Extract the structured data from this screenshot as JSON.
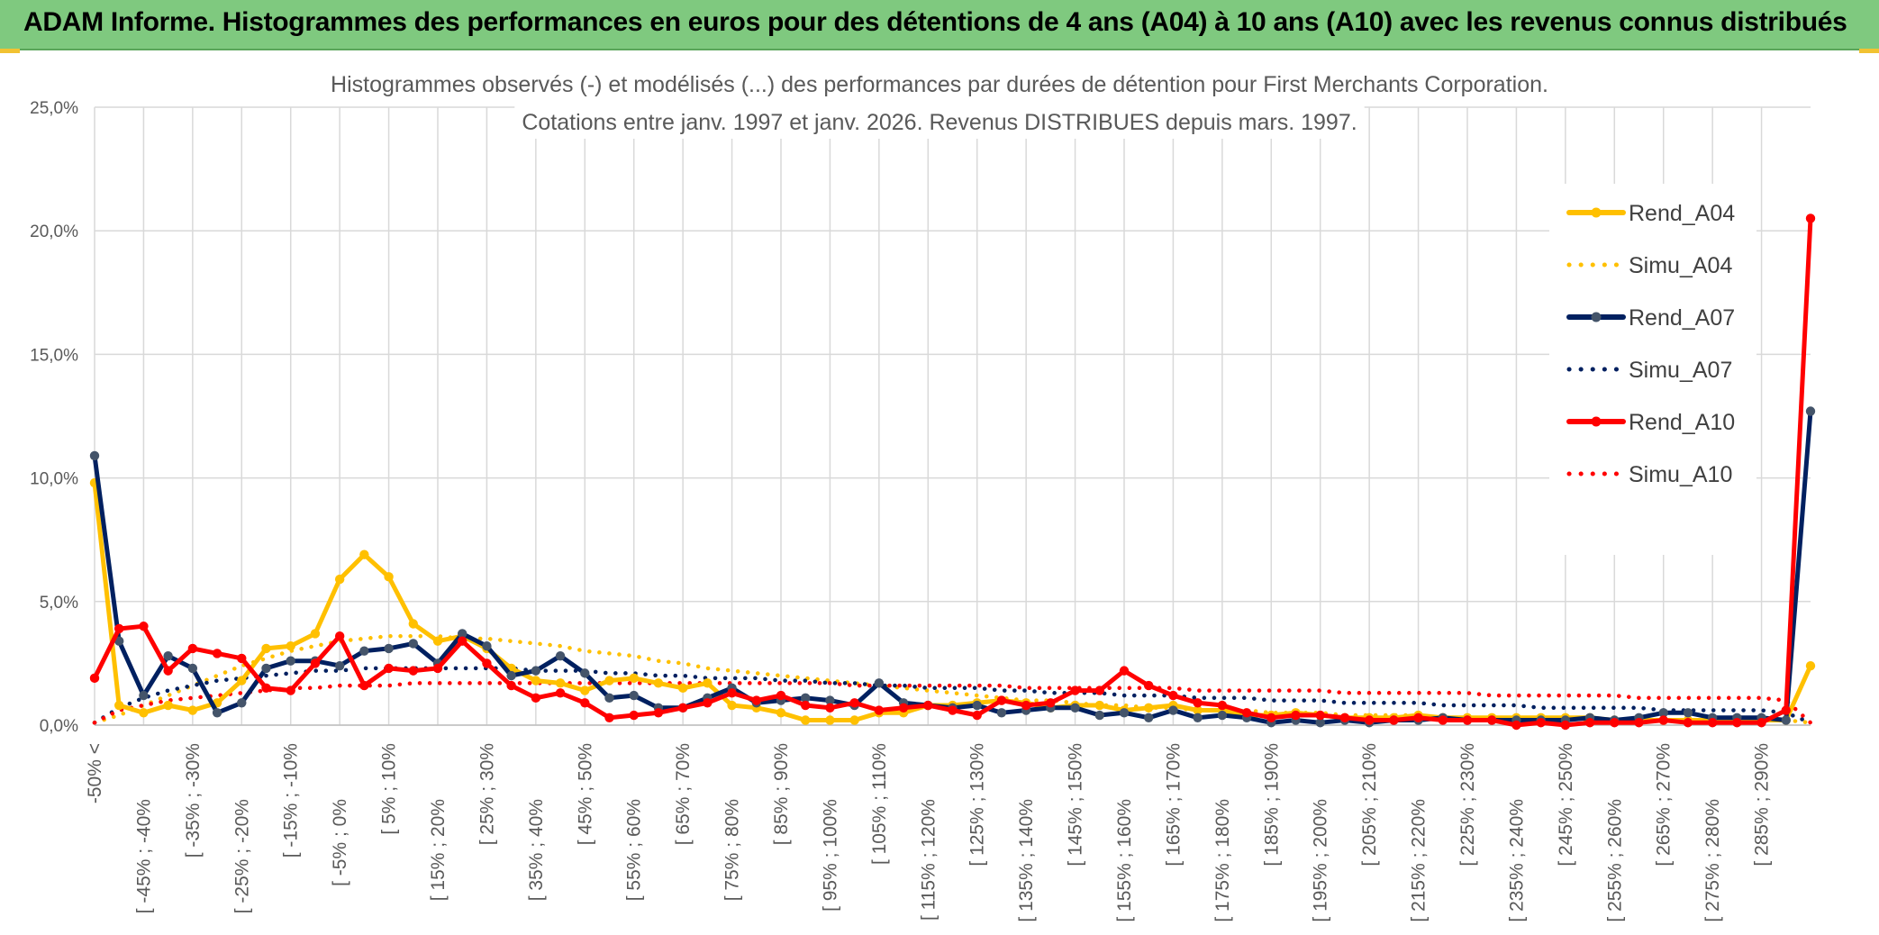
{
  "header": {
    "title": "ADAM Informe. Histogrammes des performances en euros pour des détentions de 4 ans (A04) à 10 ans (A10) avec les revenus connus distribués"
  },
  "colors": {
    "banner": "#7fc97f",
    "a04": "#ffc000",
    "a07": "#002060",
    "a10": "#ff0000",
    "grid": "#d9d9d9",
    "axis_text": "#595959"
  },
  "chart_data": {
    "type": "line",
    "title": "Histogrammes observés (-) et modélisés (...) des performances par durées de détention pour First Merchants Corporation.",
    "subtitle": "Cotations entre janv. 1997 et janv. 2026. Revenus DISTRIBUES depuis mars. 1997.",
    "xlabel": "",
    "ylabel": "",
    "ylim": [
      0,
      25
    ],
    "yticks": [
      "0,0%",
      "5,0%",
      "10,0%",
      "15,0%",
      "20,0%",
      "25,0%"
    ],
    "grid": true,
    "legend_position": "right",
    "x_labels_shown": [
      "-50% <",
      "[ -45% ; -40%",
      "[ -35% ; -30%",
      "[ -25% ; -20%",
      "[ -15% ; -10%",
      "[ -5% ; 0%",
      "[ 5% ; 10%",
      "[ 15% ; 20%",
      "[ 25% ; 30%",
      "[ 35% ; 40%",
      "[ 45% ; 50%",
      "[ 55% ; 60%",
      "[ 65% ; 70%",
      "[ 75% ; 80%",
      "[ 85% ; 90%",
      "[ 95% ; 100%",
      "[ 105% ; 110%",
      "[ 115% ; 120%",
      "[ 125% ; 130%",
      "[ 135% ; 140%",
      "[ 145% ; 150%",
      "[ 155% ; 160%",
      "[ 165% ; 170%",
      "[ 175% ; 180%",
      "[ 185% ; 190%",
      "[ 195% ; 200%",
      "[ 205% ; 210%",
      "[ 215% ; 220%",
      "[ 225% ; 230%",
      "[ 235% ; 240%",
      "[ 245% ; 250%",
      "[ 255% ; 260%",
      "[ 265% ; 270%",
      "[ 275% ; 280%",
      "[ 285% ; 290%"
    ],
    "series": [
      {
        "name": "Rend_A04",
        "style": "solid",
        "color": "#ffc000",
        "values": [
          9.8,
          0.8,
          0.5,
          0.8,
          0.6,
          0.9,
          1.8,
          3.1,
          3.2,
          3.7,
          5.9,
          6.9,
          6.0,
          4.1,
          3.4,
          3.6,
          3.1,
          2.3,
          1.8,
          1.7,
          1.4,
          1.8,
          1.9,
          1.7,
          1.5,
          1.7,
          0.8,
          0.7,
          0.5,
          0.2,
          0.2,
          0.2,
          0.5,
          0.5,
          0.8,
          0.8,
          0.9,
          1.0,
          0.9,
          0.7,
          0.8,
          0.8,
          0.6,
          0.7,
          0.8,
          0.6,
          0.6,
          0.4,
          0.4,
          0.5,
          0.4,
          0.3,
          0.3,
          0.3,
          0.4,
          0.3,
          0.3,
          0.3,
          0.3,
          0.3,
          0.3,
          0.3,
          0.2,
          0.2,
          0.2,
          0.2,
          0.2,
          0.2,
          0.2,
          0.2,
          2.4
        ]
      },
      {
        "name": "Simu_A04",
        "style": "dotted",
        "color": "#ffc000",
        "values": [
          0.1,
          0.4,
          0.8,
          1.2,
          1.6,
          2.0,
          2.4,
          2.7,
          3.0,
          3.2,
          3.4,
          3.5,
          3.6,
          3.6,
          3.6,
          3.5,
          3.5,
          3.4,
          3.3,
          3.2,
          3.0,
          2.9,
          2.8,
          2.6,
          2.5,
          2.3,
          2.2,
          2.1,
          2.0,
          1.9,
          1.8,
          1.7,
          1.6,
          1.5,
          1.4,
          1.3,
          1.2,
          1.1,
          1.0,
          1.0,
          0.9,
          0.8,
          0.8,
          0.7,
          0.7,
          0.6,
          0.6,
          0.6,
          0.5,
          0.5,
          0.5,
          0.4,
          0.4,
          0.4,
          0.4,
          0.3,
          0.3,
          0.3,
          0.3,
          0.3,
          0.3,
          0.2,
          0.2,
          0.2,
          0.2,
          0.2,
          0.2,
          0.2,
          0.2,
          0.2,
          0.1
        ]
      },
      {
        "name": "Rend_A07",
        "style": "solid",
        "color": "#002060",
        "values": [
          10.9,
          3.4,
          1.2,
          2.8,
          2.3,
          0.5,
          0.9,
          2.3,
          2.6,
          2.6,
          2.4,
          3.0,
          3.1,
          3.3,
          2.5,
          3.7,
          3.2,
          2.0,
          2.2,
          2.8,
          2.1,
          1.1,
          1.2,
          0.7,
          0.7,
          1.1,
          1.5,
          0.9,
          1.0,
          1.1,
          1.0,
          0.8,
          1.7,
          0.9,
          0.8,
          0.7,
          0.8,
          0.5,
          0.6,
          0.7,
          0.7,
          0.4,
          0.5,
          0.3,
          0.6,
          0.3,
          0.4,
          0.3,
          0.1,
          0.2,
          0.1,
          0.2,
          0.1,
          0.2,
          0.2,
          0.3,
          0.2,
          0.2,
          0.2,
          0.2,
          0.2,
          0.3,
          0.2,
          0.3,
          0.5,
          0.5,
          0.3,
          0.3,
          0.3,
          0.2,
          12.7
        ]
      },
      {
        "name": "Simu_A07",
        "style": "dotted",
        "color": "#002060",
        "values": [
          0.1,
          0.7,
          1.1,
          1.4,
          1.6,
          1.8,
          1.9,
          2.0,
          2.1,
          2.2,
          2.2,
          2.3,
          2.3,
          2.3,
          2.3,
          2.3,
          2.3,
          2.3,
          2.2,
          2.2,
          2.2,
          2.1,
          2.1,
          2.0,
          2.0,
          1.9,
          1.9,
          1.9,
          1.8,
          1.8,
          1.7,
          1.7,
          1.6,
          1.6,
          1.5,
          1.5,
          1.5,
          1.4,
          1.4,
          1.3,
          1.3,
          1.3,
          1.2,
          1.2,
          1.2,
          1.1,
          1.1,
          1.1,
          1.0,
          1.0,
          1.0,
          0.9,
          0.9,
          0.9,
          0.9,
          0.8,
          0.8,
          0.8,
          0.8,
          0.7,
          0.7,
          0.7,
          0.7,
          0.7,
          0.6,
          0.6,
          0.6,
          0.6,
          0.6,
          0.5,
          0.1
        ]
      },
      {
        "name": "Rend_A10",
        "style": "solid",
        "color": "#ff0000",
        "values": [
          1.9,
          3.9,
          4.0,
          2.2,
          3.1,
          2.9,
          2.7,
          1.5,
          1.4,
          2.5,
          3.6,
          1.6,
          2.3,
          2.2,
          2.3,
          3.4,
          2.5,
          1.6,
          1.1,
          1.3,
          0.9,
          0.3,
          0.4,
          0.5,
          0.7,
          0.9,
          1.3,
          1.0,
          1.2,
          0.8,
          0.7,
          0.9,
          0.6,
          0.7,
          0.8,
          0.6,
          0.4,
          1.0,
          0.8,
          0.9,
          1.4,
          1.4,
          2.2,
          1.6,
          1.2,
          0.9,
          0.8,
          0.5,
          0.3,
          0.4,
          0.4,
          0.3,
          0.2,
          0.2,
          0.3,
          0.2,
          0.2,
          0.2,
          0.0,
          0.1,
          0.0,
          0.1,
          0.1,
          0.1,
          0.2,
          0.1,
          0.1,
          0.1,
          0.1,
          0.6,
          20.5
        ]
      },
      {
        "name": "Simu_A10",
        "style": "dotted",
        "color": "#ff0000",
        "values": [
          0.1,
          0.6,
          0.8,
          1.0,
          1.1,
          1.2,
          1.3,
          1.4,
          1.5,
          1.5,
          1.6,
          1.6,
          1.6,
          1.7,
          1.7,
          1.7,
          1.7,
          1.7,
          1.7,
          1.7,
          1.7,
          1.7,
          1.7,
          1.7,
          1.7,
          1.7,
          1.7,
          1.7,
          1.7,
          1.7,
          1.7,
          1.6,
          1.6,
          1.6,
          1.6,
          1.6,
          1.6,
          1.6,
          1.5,
          1.5,
          1.5,
          1.5,
          1.5,
          1.5,
          1.5,
          1.4,
          1.4,
          1.4,
          1.4,
          1.4,
          1.4,
          1.3,
          1.3,
          1.3,
          1.3,
          1.3,
          1.3,
          1.2,
          1.2,
          1.2,
          1.2,
          1.2,
          1.2,
          1.1,
          1.1,
          1.1,
          1.1,
          1.1,
          1.1,
          1.0,
          0.1
        ]
      }
    ]
  }
}
